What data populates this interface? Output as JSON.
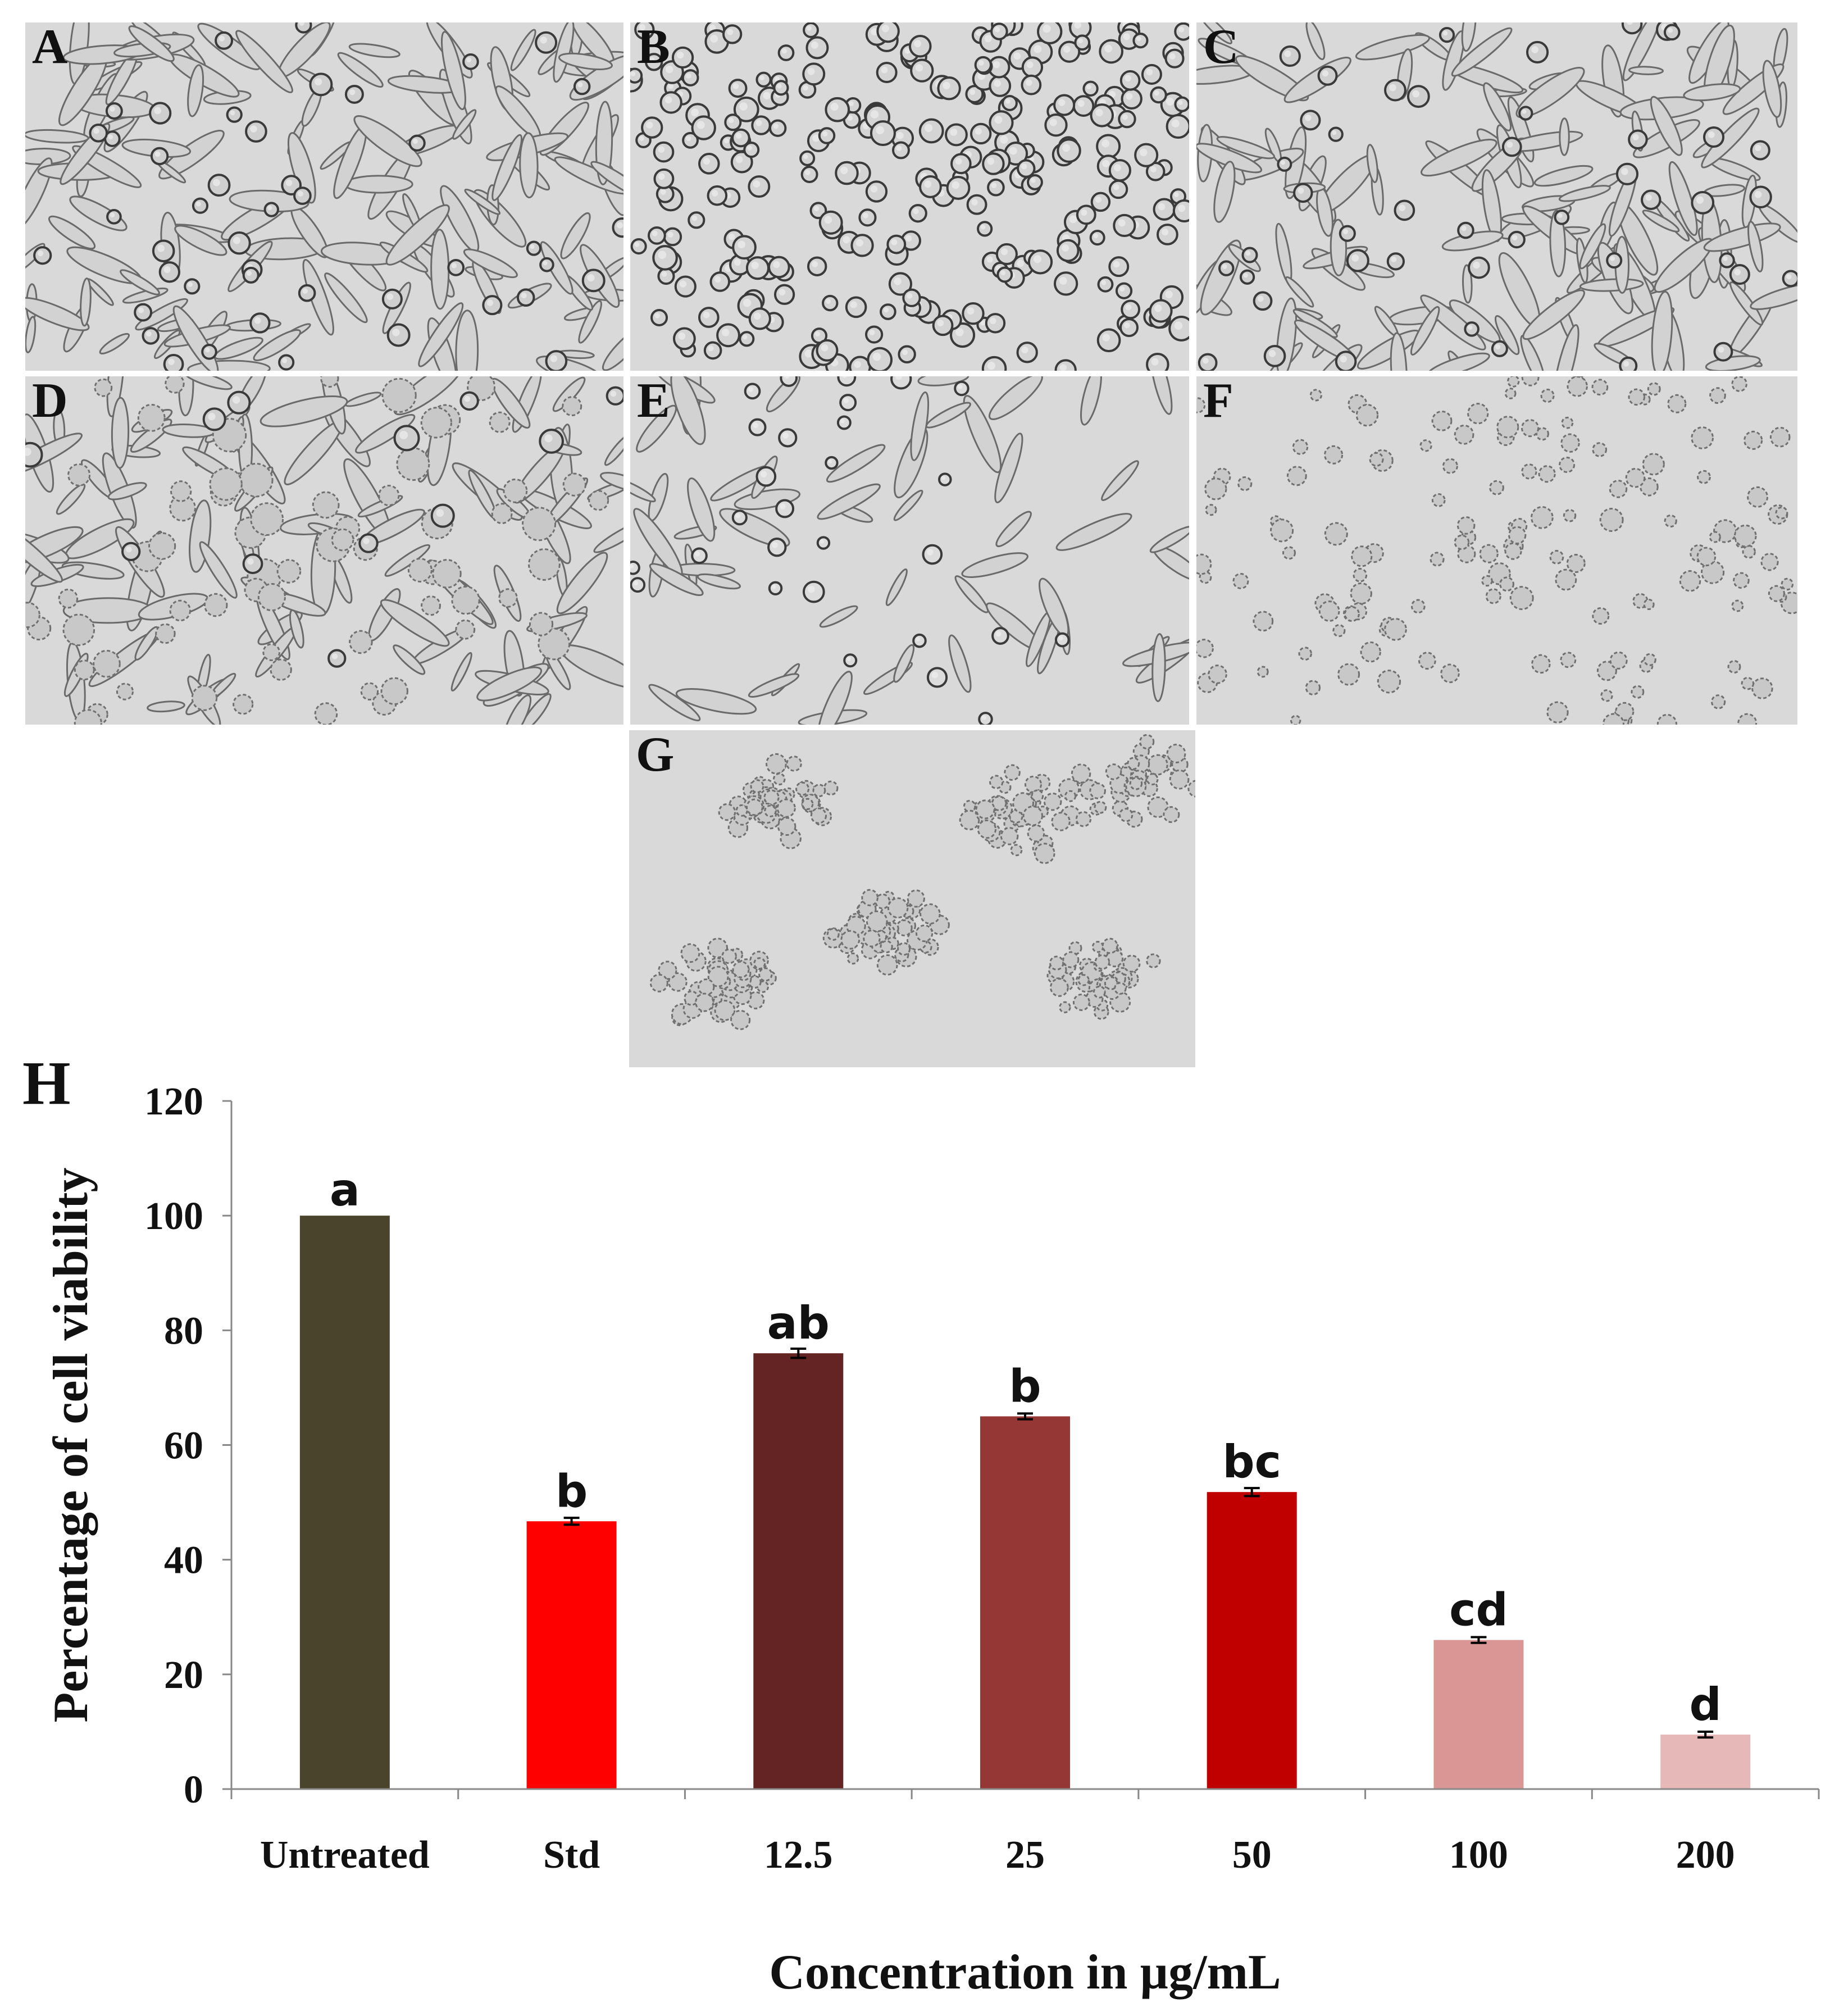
{
  "panels": [
    {
      "label": "A",
      "style": "spindle-dense"
    },
    {
      "label": "B",
      "style": "round-dense"
    },
    {
      "label": "C",
      "style": "spindle-dense"
    },
    {
      "label": "D",
      "style": "granular-dense"
    },
    {
      "label": "E",
      "style": "spindle-sparse"
    },
    {
      "label": "F",
      "style": "granular-sparse"
    },
    {
      "label": "G",
      "style": "clustered"
    }
  ],
  "chart_data": {
    "panel_label": "H",
    "type": "bar",
    "categories": [
      "Untreated",
      "Std",
      "12.5",
      "25",
      "50",
      "100",
      "200"
    ],
    "values": [
      100,
      46.7,
      76,
      65,
      51.8,
      26,
      9.5
    ],
    "errors": [
      0,
      0.6,
      0.8,
      0.5,
      0.7,
      0.5,
      0.5
    ],
    "significance": [
      "a",
      "b",
      "ab",
      "b",
      "bc",
      "cd",
      "d"
    ],
    "colors": [
      "#4a442d",
      "#ff0000",
      "#632423",
      "#953735",
      "#c00000",
      "#d99694",
      "#e6b9b8"
    ],
    "xlabel": "Concentration in µg/mL",
    "ylabel": "Percentage of cell viability",
    "ylim": [
      0,
      120
    ],
    "yticks": [
      0,
      20,
      40,
      60,
      80,
      100,
      120
    ],
    "grid": false,
    "legend": "none"
  }
}
